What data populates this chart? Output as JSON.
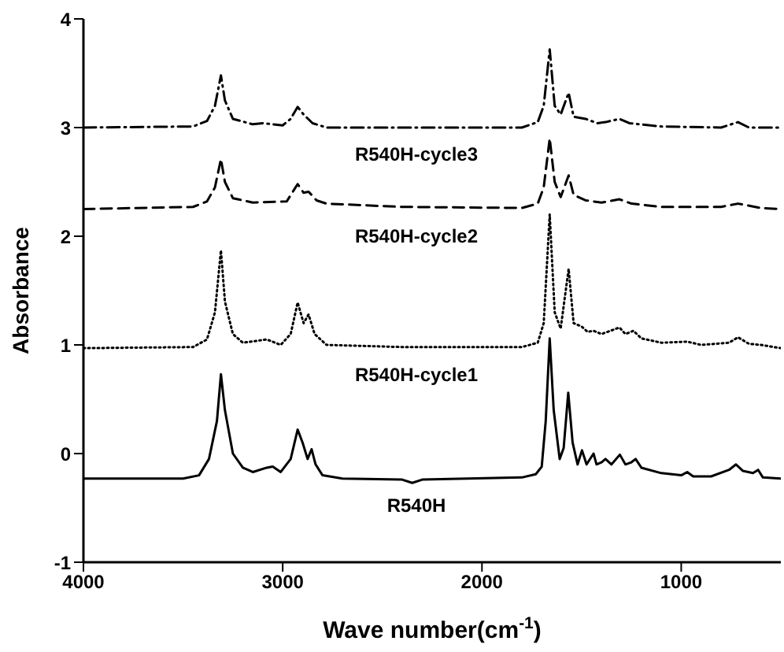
{
  "chart_data": {
    "type": "line",
    "xlabel": "Wave number(cm$^{-1}$)",
    "ylabel": "Absorbance",
    "xlim": [
      4000,
      500
    ],
    "xticks": [
      4000,
      3000,
      2000,
      1000
    ],
    "ylim": [
      -1,
      4
    ],
    "yticks": [
      -1,
      0,
      1,
      2,
      3,
      4
    ],
    "grid": false,
    "legend": false,
    "marker": "none",
    "series": [
      {
        "name": "R540H-cycle3",
        "color": "#000000",
        "line_style": "dashdot",
        "x": [
          4000,
          3450,
          3380,
          3340,
          3310,
          3290,
          3250,
          3150,
          3100,
          3000,
          2960,
          2925,
          2895,
          2850,
          2780,
          2400,
          1800,
          1720,
          1690,
          1660,
          1635,
          1605,
          1565,
          1540,
          1480,
          1420,
          1380,
          1310,
          1260,
          1100,
          800,
          715,
          660,
          500
        ],
        "values": [
          3.0,
          3.01,
          3.06,
          3.2,
          3.48,
          3.25,
          3.08,
          3.03,
          3.04,
          3.02,
          3.08,
          3.19,
          3.12,
          3.04,
          3.0,
          3.0,
          3.0,
          3.05,
          3.2,
          3.72,
          3.2,
          3.12,
          3.32,
          3.1,
          3.08,
          3.04,
          3.05,
          3.08,
          3.04,
          3.01,
          3.0,
          3.05,
          3.0,
          3.0
        ]
      },
      {
        "name": "R540H-cycle2",
        "color": "#000000",
        "line_style": "dashed",
        "x": [
          4000,
          3450,
          3380,
          3340,
          3310,
          3290,
          3250,
          3150,
          2980,
          2925,
          2895,
          2870,
          2830,
          2780,
          2400,
          1800,
          1720,
          1690,
          1660,
          1635,
          1605,
          1565,
          1540,
          1480,
          1400,
          1310,
          1250,
          1100,
          800,
          715,
          600,
          500
        ],
        "values": [
          2.25,
          2.27,
          2.32,
          2.45,
          2.71,
          2.5,
          2.35,
          2.31,
          2.32,
          2.48,
          2.4,
          2.41,
          2.33,
          2.3,
          2.27,
          2.26,
          2.3,
          2.45,
          2.9,
          2.5,
          2.36,
          2.56,
          2.38,
          2.33,
          2.31,
          2.34,
          2.3,
          2.27,
          2.27,
          2.3,
          2.26,
          2.25
        ]
      },
      {
        "name": "R540H-cycle1",
        "color": "#000000",
        "line_style": "dotted",
        "x": [
          4000,
          3450,
          3380,
          3340,
          3310,
          3290,
          3250,
          3200,
          3080,
          3010,
          2960,
          2925,
          2895,
          2870,
          2840,
          2780,
          2400,
          1800,
          1720,
          1690,
          1660,
          1635,
          1605,
          1565,
          1540,
          1500,
          1470,
          1440,
          1400,
          1310,
          1280,
          1240,
          1200,
          1100,
          970,
          900,
          760,
          715,
          660,
          600,
          500
        ],
        "values": [
          0.97,
          0.98,
          1.05,
          1.3,
          1.87,
          1.4,
          1.1,
          1.02,
          1.05,
          1.0,
          1.1,
          1.39,
          1.2,
          1.28,
          1.1,
          1.0,
          0.98,
          0.98,
          1.02,
          1.2,
          2.2,
          1.3,
          1.15,
          1.7,
          1.2,
          1.17,
          1.12,
          1.13,
          1.1,
          1.16,
          1.1,
          1.13,
          1.06,
          1.02,
          1.03,
          1.0,
          1.02,
          1.07,
          1.01,
          1.0,
          0.97
        ]
      },
      {
        "name": "R540H",
        "color": "#000000",
        "line_style": "solid",
        "x": [
          4000,
          3500,
          3420,
          3370,
          3330,
          3310,
          3290,
          3250,
          3200,
          3150,
          3080,
          3050,
          3010,
          2960,
          2925,
          2900,
          2875,
          2855,
          2835,
          2800,
          2700,
          2400,
          2350,
          2300,
          1800,
          1730,
          1700,
          1680,
          1660,
          1640,
          1610,
          1590,
          1567,
          1545,
          1520,
          1498,
          1475,
          1440,
          1425,
          1400,
          1380,
          1350,
          1308,
          1280,
          1250,
          1229,
          1200,
          1100,
          1000,
          970,
          940,
          850,
          760,
          725,
          690,
          640,
          614,
          590,
          500
        ],
        "values": [
          -0.23,
          -0.23,
          -0.2,
          -0.05,
          0.3,
          0.73,
          0.4,
          0.0,
          -0.13,
          -0.17,
          -0.13,
          -0.12,
          -0.17,
          -0.05,
          0.22,
          0.1,
          -0.05,
          0.04,
          -0.1,
          -0.2,
          -0.23,
          -0.24,
          -0.27,
          -0.24,
          -0.22,
          -0.19,
          -0.12,
          0.3,
          1.06,
          0.4,
          -0.05,
          0.05,
          0.56,
          0.1,
          -0.1,
          0.03,
          -0.1,
          0.0,
          -0.1,
          -0.08,
          -0.05,
          -0.1,
          -0.01,
          -0.1,
          -0.08,
          -0.05,
          -0.13,
          -0.18,
          -0.2,
          -0.17,
          -0.21,
          -0.21,
          -0.15,
          -0.1,
          -0.16,
          -0.18,
          -0.15,
          -0.22,
          -0.23
        ]
      }
    ]
  }
}
